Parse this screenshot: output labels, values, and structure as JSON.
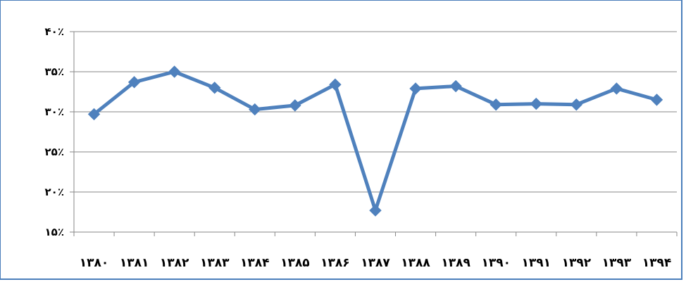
{
  "chart_data": {
    "type": "line",
    "title": "",
    "xlabel": "",
    "ylabel": "",
    "categories": [
      "۱۳۸۰",
      "۱۳۸۱",
      "۱۳۸۲",
      "۱۳۸۳",
      "۱۳۸۴",
      "۱۳۸۵",
      "۱۳۸۶",
      "۱۳۸۷",
      "۱۳۸۸",
      "۱۳۸۹",
      "۱۳۹۰",
      "۱۳۹۱",
      "۱۳۹۲",
      "۱۳۹۳",
      "۱۳۹۴"
    ],
    "series": [
      {
        "values": [
          29.7,
          33.7,
          35.0,
          33.0,
          30.3,
          30.8,
          33.4,
          17.7,
          32.9,
          33.2,
          30.9,
          31.0,
          30.9,
          32.9,
          31.5
        ]
      }
    ],
    "ylim": [
      15,
      40
    ],
    "yticks": [
      15,
      20,
      25,
      30,
      35,
      40
    ],
    "yticklabels": [
      "۱۵٪",
      "۲۰٪",
      "۲۵٪",
      "۳۰٪",
      "۳۵٪",
      "۴۰٪"
    ],
    "grid": true,
    "legend": "none",
    "colors": {
      "line": "#4f81bd",
      "grid": "#878787",
      "axis": "#878787",
      "frame": "#4a7ebb"
    }
  }
}
